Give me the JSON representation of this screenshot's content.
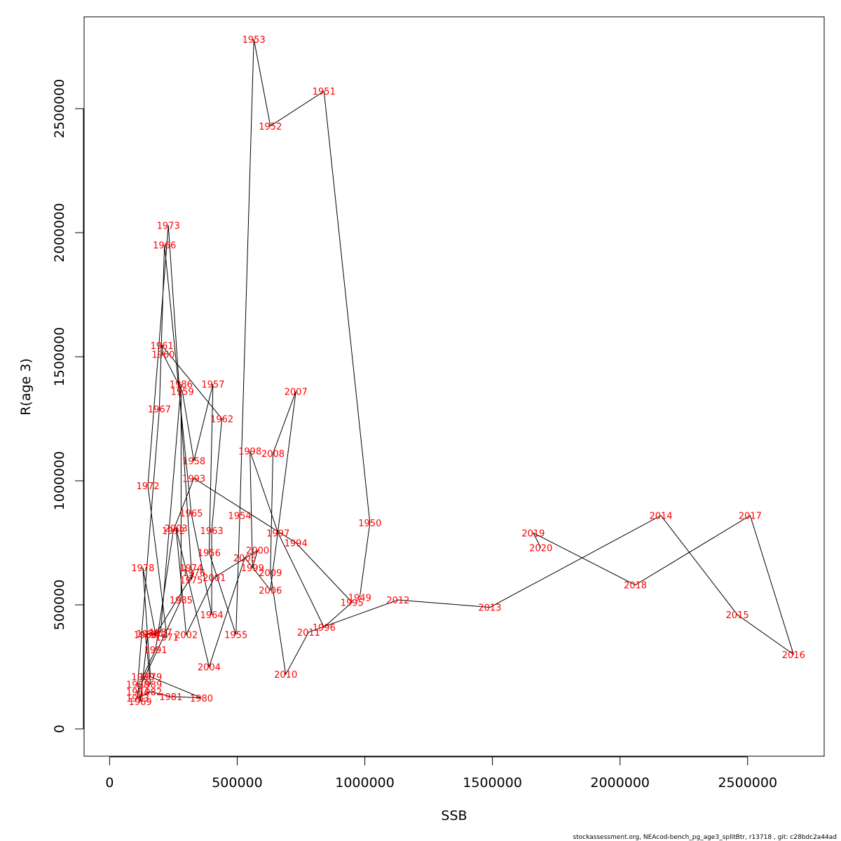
{
  "chart_data": {
    "type": "line",
    "xlabel": "SSB",
    "ylabel": "R(age 3)",
    "xlim": [
      -100000,
      2800000
    ],
    "ylim": [
      -110000,
      2870000
    ],
    "x_ticks": [
      0,
      500000,
      1000000,
      1500000,
      2000000,
      2500000
    ],
    "x_tick_labels": [
      "0",
      "500000",
      "1000000",
      "1500000",
      "2000000",
      "2500000"
    ],
    "y_ticks": [
      0,
      500000,
      1000000,
      1500000,
      2000000,
      2500000
    ],
    "y_tick_labels": [
      "0",
      "500000",
      "1000000",
      "1500000",
      "2000000",
      "2500000"
    ],
    "colors": {
      "line": "#000000",
      "labels": "#ff0000"
    },
    "points": [
      {
        "year": "1949",
        "x": 980000,
        "y": 530000
      },
      {
        "year": "1950",
        "x": 1020000,
        "y": 830000
      },
      {
        "year": "1951",
        "x": 840000,
        "y": 2570000
      },
      {
        "year": "1952",
        "x": 630000,
        "y": 2430000
      },
      {
        "year": "1953",
        "x": 565000,
        "y": 2780000
      },
      {
        "year": "1954",
        "x": 510000,
        "y": 860000
      },
      {
        "year": "1955",
        "x": 495000,
        "y": 380000
      },
      {
        "year": "1956",
        "x": 390000,
        "y": 710000
      },
      {
        "year": "1957",
        "x": 405000,
        "y": 1390000
      },
      {
        "year": "1958",
        "x": 330000,
        "y": 1080000
      },
      {
        "year": "1959",
        "x": 285000,
        "y": 1360000
      },
      {
        "year": "1960",
        "x": 210000,
        "y": 1510000
      },
      {
        "year": "1961",
        "x": 205000,
        "y": 1545000
      },
      {
        "year": "1962",
        "x": 440000,
        "y": 1250000
      },
      {
        "year": "1963",
        "x": 400000,
        "y": 800000
      },
      {
        "year": "1964",
        "x": 400000,
        "y": 460000
      },
      {
        "year": "1965",
        "x": 320000,
        "y": 870000
      },
      {
        "year": "1966",
        "x": 215000,
        "y": 1950000
      },
      {
        "year": "1967",
        "x": 195000,
        "y": 1290000
      },
      {
        "year": "1968",
        "x": 110000,
        "y": 180000
      },
      {
        "year": "1969",
        "x": 120000,
        "y": 110000
      },
      {
        "year": "1970",
        "x": 150000,
        "y": 385000
      },
      {
        "year": "1971",
        "x": 225000,
        "y": 370000
      },
      {
        "year": "1972",
        "x": 150000,
        "y": 980000
      },
      {
        "year": "1973",
        "x": 230000,
        "y": 2030000
      },
      {
        "year": "1974",
        "x": 320000,
        "y": 650000
      },
      {
        "year": "1975",
        "x": 320000,
        "y": 600000
      },
      {
        "year": "1976",
        "x": 330000,
        "y": 630000
      },
      {
        "year": "1977",
        "x": 180000,
        "y": 380000
      },
      {
        "year": "1978",
        "x": 130000,
        "y": 650000
      },
      {
        "year": "1979",
        "x": 160000,
        "y": 210000
      },
      {
        "year": "1980",
        "x": 360000,
        "y": 125000
      },
      {
        "year": "1981",
        "x": 240000,
        "y": 130000
      },
      {
        "year": "1982",
        "x": 160000,
        "y": 150000
      },
      {
        "year": "1983",
        "x": 110000,
        "y": 125000
      },
      {
        "year": "1984",
        "x": 110000,
        "y": 150000
      },
      {
        "year": "1985",
        "x": 280000,
        "y": 520000
      },
      {
        "year": "1986",
        "x": 280000,
        "y": 1390000
      },
      {
        "year": "1987",
        "x": 200000,
        "y": 390000
      },
      {
        "year": "1988",
        "x": 140000,
        "y": 380000
      },
      {
        "year": "1989",
        "x": 160000,
        "y": 180000
      },
      {
        "year": "1990",
        "x": 130000,
        "y": 210000
      },
      {
        "year": "1991",
        "x": 180000,
        "y": 320000
      },
      {
        "year": "1992",
        "x": 250000,
        "y": 800000
      },
      {
        "year": "1993",
        "x": 330000,
        "y": 1010000
      },
      {
        "year": "1994",
        "x": 730000,
        "y": 750000
      },
      {
        "year": "1995",
        "x": 950000,
        "y": 510000
      },
      {
        "year": "1996",
        "x": 840000,
        "y": 410000
      },
      {
        "year": "1997",
        "x": 660000,
        "y": 790000
      },
      {
        "year": "1998",
        "x": 550000,
        "y": 1120000
      },
      {
        "year": "1999",
        "x": 560000,
        "y": 650000
      },
      {
        "year": "2000",
        "x": 580000,
        "y": 720000
      },
      {
        "year": "2001",
        "x": 410000,
        "y": 610000
      },
      {
        "year": "2002",
        "x": 300000,
        "y": 380000
      },
      {
        "year": "2003",
        "x": 260000,
        "y": 810000
      },
      {
        "year": "2004",
        "x": 390000,
        "y": 250000
      },
      {
        "year": "2005",
        "x": 530000,
        "y": 690000
      },
      {
        "year": "2006",
        "x": 630000,
        "y": 560000
      },
      {
        "year": "2007",
        "x": 730000,
        "y": 1360000
      },
      {
        "year": "2008",
        "x": 640000,
        "y": 1110000
      },
      {
        "year": "2009",
        "x": 630000,
        "y": 630000
      },
      {
        "year": "2010",
        "x": 690000,
        "y": 220000
      },
      {
        "year": "2011",
        "x": 780000,
        "y": 390000
      },
      {
        "year": "2012",
        "x": 1130000,
        "y": 520000
      },
      {
        "year": "2013",
        "x": 1490000,
        "y": 490000
      },
      {
        "year": "2014",
        "x": 2160000,
        "y": 860000
      },
      {
        "year": "2015",
        "x": 2460000,
        "y": 460000
      },
      {
        "year": "2016",
        "x": 2680000,
        "y": 300000
      },
      {
        "year": "2017",
        "x": 2510000,
        "y": 860000
      },
      {
        "year": "2018",
        "x": 2060000,
        "y": 580000
      },
      {
        "year": "2019",
        "x": 1660000,
        "y": 790000
      },
      {
        "year": "2020",
        "x": 1690000,
        "y": 730000
      }
    ]
  },
  "footer": "stockassessment.org, NEAcod-bench_pg_age3_splitBtr, r13718 , git: c28bdc2a44ad"
}
